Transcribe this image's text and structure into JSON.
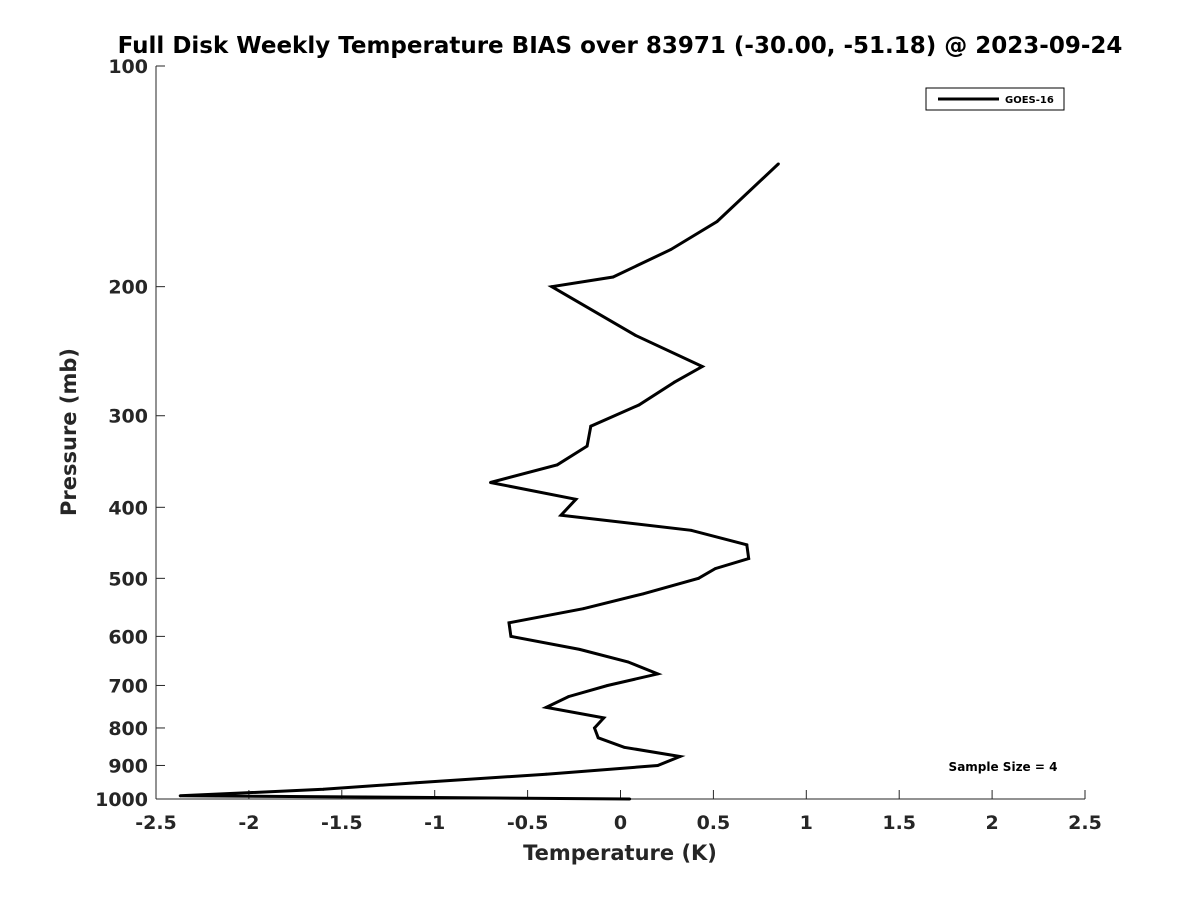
{
  "chart_data": {
    "type": "line",
    "title": "Full Disk Weekly Temperature BIAS over 83971 (-30.00, -51.18) @ 2023-09-24",
    "xlabel": "Temperature (K)",
    "ylabel": "Pressure (mb)",
    "xlim": [
      -2.5,
      2.5
    ],
    "ylim": [
      100,
      1000
    ],
    "y_scale": "log",
    "y_inverted": true,
    "x_ticks": [
      "-2.5",
      "-2",
      "-1.5",
      "-1",
      "-0.5",
      "0",
      "0.5",
      "1",
      "1.5",
      "2",
      "2.5"
    ],
    "y_ticks": [
      "100",
      "200",
      "300",
      "400",
      "500",
      "600",
      "700",
      "800",
      "900",
      "1000"
    ],
    "grid": false,
    "legend_position": "top-right",
    "series": [
      {
        "name": "GOES-16",
        "color": "#000000",
        "points": [
          {
            "x": 0.85,
            "p": 136
          },
          {
            "x": 0.52,
            "p": 163
          },
          {
            "x": 0.27,
            "p": 178
          },
          {
            "x": -0.04,
            "p": 194
          },
          {
            "x": -0.37,
            "p": 200
          },
          {
            "x": 0.08,
            "p": 233
          },
          {
            "x": 0.44,
            "p": 257
          },
          {
            "x": 0.29,
            "p": 270
          },
          {
            "x": 0.1,
            "p": 290
          },
          {
            "x": -0.16,
            "p": 310
          },
          {
            "x": -0.18,
            "p": 330
          },
          {
            "x": -0.34,
            "p": 350
          },
          {
            "x": -0.7,
            "p": 370
          },
          {
            "x": -0.24,
            "p": 390
          },
          {
            "x": -0.32,
            "p": 410
          },
          {
            "x": 0.38,
            "p": 430
          },
          {
            "x": 0.68,
            "p": 450
          },
          {
            "x": 0.69,
            "p": 470
          },
          {
            "x": 0.51,
            "p": 485
          },
          {
            "x": 0.42,
            "p": 500
          },
          {
            "x": 0.12,
            "p": 525
          },
          {
            "x": -0.2,
            "p": 550
          },
          {
            "x": -0.6,
            "p": 575
          },
          {
            "x": -0.59,
            "p": 600
          },
          {
            "x": -0.22,
            "p": 625
          },
          {
            "x": 0.04,
            "p": 650
          },
          {
            "x": 0.2,
            "p": 675
          },
          {
            "x": -0.07,
            "p": 700
          },
          {
            "x": -0.28,
            "p": 725
          },
          {
            "x": -0.4,
            "p": 750
          },
          {
            "x": -0.09,
            "p": 775
          },
          {
            "x": -0.14,
            "p": 800
          },
          {
            "x": -0.12,
            "p": 825
          },
          {
            "x": 0.02,
            "p": 850
          },
          {
            "x": 0.32,
            "p": 875
          },
          {
            "x": 0.2,
            "p": 900
          },
          {
            "x": -0.4,
            "p": 925
          },
          {
            "x": -1.1,
            "p": 950
          },
          {
            "x": -1.6,
            "p": 970
          },
          {
            "x": -2.37,
            "p": 990
          },
          {
            "x": -1.1,
            "p": 995
          },
          {
            "x": 0.05,
            "p": 1000
          }
        ]
      }
    ],
    "annotations": [
      {
        "text": "Sample Size = 4",
        "position": "bottom-right"
      }
    ]
  }
}
